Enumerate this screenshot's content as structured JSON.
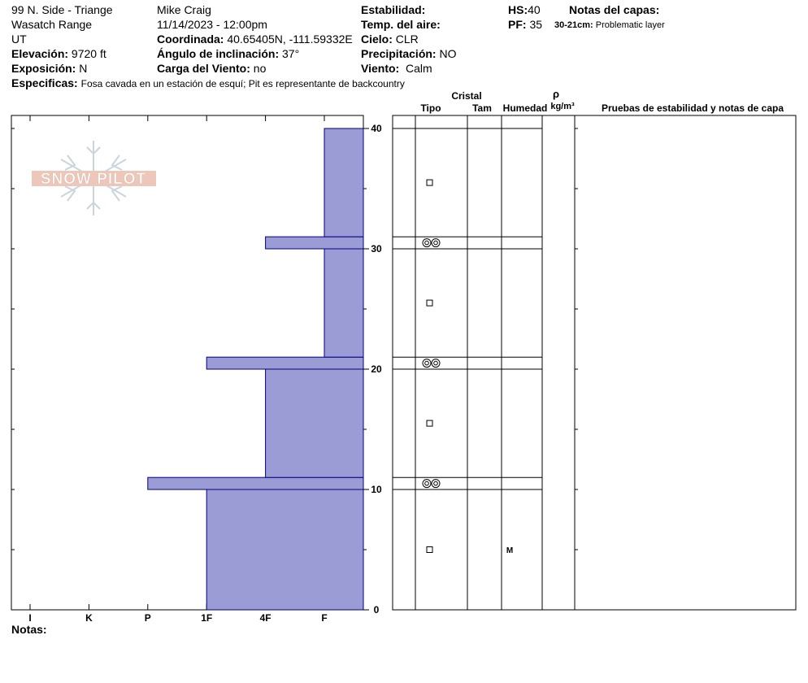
{
  "header": {
    "location": "99 N. Side - Triange",
    "range": "Wasatch Range",
    "state": "UT",
    "elevation_label": "Elevación:",
    "elevation_value": "9720 ft",
    "aspect_label": "Exposición:",
    "aspect_value": "N",
    "observer": "Mike Craig",
    "datetime": "11/14/2023 - 12:00pm",
    "coord_label": "Coordinada:",
    "coord_value": "40.65405N, -111.59332E",
    "slope_label": "Ángulo de inclinación:",
    "slope_value": "37°",
    "wind_loading_label": "Carga del Viento:",
    "wind_loading_value": "no",
    "stability_label": "Estabilidad:",
    "stability_value": "",
    "air_temp_label": "Temp. del aire:",
    "air_temp_value": "",
    "sky_label": "Cielo:",
    "sky_value": "CLR",
    "precip_label": "Precipitación:",
    "precip_value": "NO",
    "wind_label": "Viento:",
    "wind_value": "Calm",
    "hs_label": "HS:",
    "hs_value": "40",
    "pf_label": "PF:",
    "pf_value": "35",
    "layer_notes_title": "Notas del capas:",
    "layer_note_range": "30-21cm:",
    "layer_note_text": "Problematic layer",
    "specifics_label": "Especificas:",
    "specifics_text": "Fosa cavada en un estación de esquí; Pit es representante de backcountry",
    "notes_label": "Notas:"
  },
  "logo_text": "SNOW PILOT",
  "table": {
    "crystal_header": "Cristal",
    "rho_symbol": "ρ",
    "col_type": "Tipo",
    "col_size": "Tam",
    "col_moisture": "Humedad",
    "col_density_unit": "kg/m³",
    "col_tests": "Pruebas de estabilidad y notas de capa"
  },
  "colors": {
    "hardness_fill": "#9b9bd6",
    "hardness_stroke": "#000080"
  },
  "chart_data": {
    "type": "bar",
    "orientation": "horizontal-step",
    "xaxis_ticks": [
      "I",
      "K",
      "P",
      "1F",
      "4F",
      "F"
    ],
    "yaxis_ticks": [
      0,
      10,
      20,
      30,
      40
    ],
    "ylim": [
      0,
      41
    ],
    "xlim_index": [
      0,
      6
    ],
    "layers": [
      {
        "bottom": 0,
        "top": 10,
        "hardness": "1F"
      },
      {
        "bottom": 10,
        "top": 11,
        "hardness": "P"
      },
      {
        "bottom": 11,
        "top": 20,
        "hardness": "4F"
      },
      {
        "bottom": 20,
        "top": 21,
        "hardness": "1F"
      },
      {
        "bottom": 21,
        "top": 30,
        "hardness": "F"
      },
      {
        "bottom": 30,
        "top": 31,
        "hardness": "4F"
      },
      {
        "bottom": 31,
        "top": 40,
        "hardness": "F"
      }
    ],
    "crystal_rows": [
      {
        "bottom": 0,
        "top": 10,
        "grain": "faceted",
        "moisture": "M"
      },
      {
        "bottom": 10,
        "top": 11,
        "grain": "depth-hoar",
        "moisture": ""
      },
      {
        "bottom": 11,
        "top": 20,
        "grain": "faceted",
        "moisture": ""
      },
      {
        "bottom": 20,
        "top": 21,
        "grain": "depth-hoar",
        "moisture": ""
      },
      {
        "bottom": 21,
        "top": 30,
        "grain": "faceted",
        "moisture": ""
      },
      {
        "bottom": 30,
        "top": 31,
        "grain": "depth-hoar",
        "moisture": ""
      },
      {
        "bottom": 31,
        "top": 40,
        "grain": "faceted",
        "moisture": ""
      }
    ]
  }
}
